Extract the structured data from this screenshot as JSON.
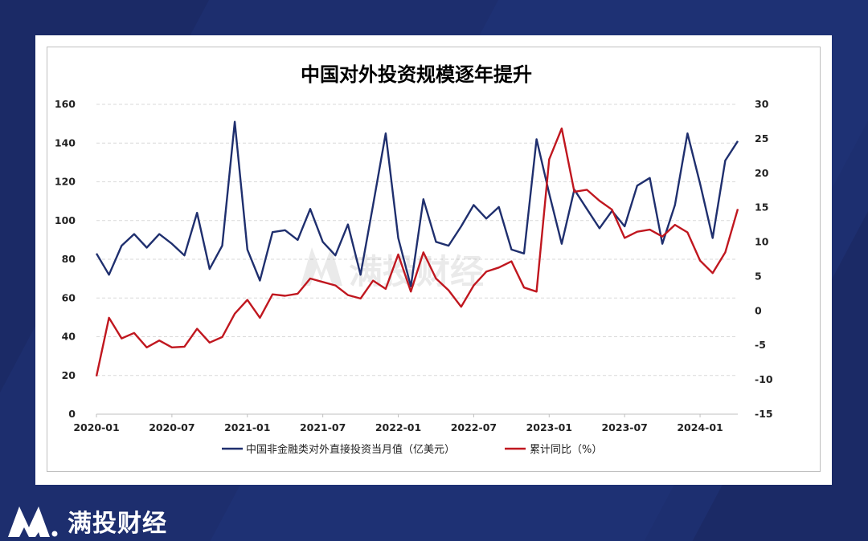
{
  "brand": {
    "name": "满投财经",
    "watermark": "满投财经"
  },
  "colors": {
    "background": "#1b2a66",
    "series_blue": "#1f2f6e",
    "series_red": "#c0171f"
  },
  "chart_data": {
    "type": "line",
    "title": "中国对外投资规模逐年提升",
    "x_tick_labels": [
      "2020-01",
      "2020-07",
      "2021-01",
      "2021-07",
      "2022-01",
      "2022-07",
      "2023-01",
      "2023-07",
      "2024-01"
    ],
    "x": [
      "2020-01",
      "2020-02",
      "2020-03",
      "2020-04",
      "2020-05",
      "2020-06",
      "2020-07",
      "2020-08",
      "2020-09",
      "2020-10",
      "2020-11",
      "2020-12",
      "2021-01",
      "2021-02",
      "2021-03",
      "2021-04",
      "2021-05",
      "2021-06",
      "2021-07",
      "2021-08",
      "2021-09",
      "2021-10",
      "2021-11",
      "2021-12",
      "2022-01",
      "2022-02",
      "2022-03",
      "2022-04",
      "2022-05",
      "2022-06",
      "2022-07",
      "2022-08",
      "2022-09",
      "2022-10",
      "2022-11",
      "2022-12",
      "2023-01",
      "2023-02",
      "2023-03",
      "2023-04",
      "2023-05",
      "2023-06",
      "2023-07",
      "2023-08",
      "2023-09",
      "2023-10",
      "2023-11",
      "2023-12",
      "2024-01",
      "2024-02",
      "2024-03",
      "2024-04"
    ],
    "y_left": {
      "ylim": [
        0,
        160
      ],
      "ticks": [
        "0",
        "20",
        "40",
        "60",
        "80",
        "100",
        "120",
        "140",
        "160"
      ]
    },
    "y_right": {
      "ylim": [
        -15,
        30
      ],
      "ticks": [
        "-15",
        "-10",
        "-5",
        "0",
        "5",
        "10",
        "15",
        "20",
        "25",
        "30"
      ]
    },
    "legend_position": "bottom",
    "series": [
      {
        "name": "中国非金融类对外直接投资当月值（亿美元）",
        "axis": "left",
        "color": "#1f2f6e",
        "values": [
          83,
          72,
          87,
          93,
          86,
          93,
          88,
          82,
          104,
          75,
          87,
          151,
          85,
          69,
          94,
          95,
          90,
          106,
          89,
          82,
          98,
          72,
          108,
          145,
          91,
          66,
          111,
          89,
          87,
          97,
          108,
          101,
          107,
          85,
          83,
          142,
          114,
          88,
          116,
          106,
          96,
          105,
          97,
          118,
          122,
          88,
          108,
          145,
          119,
          91,
          131,
          141
        ]
      },
      {
        "name": "累计同比（%）",
        "axis": "right",
        "color": "#c0171f",
        "values": [
          -9.5,
          -1.0,
          -4.0,
          -3.2,
          -5.3,
          -4.3,
          -5.3,
          -5.2,
          -2.6,
          -4.6,
          -3.8,
          -0.4,
          1.6,
          -1.0,
          2.4,
          2.2,
          2.5,
          4.7,
          4.2,
          3.7,
          2.3,
          1.8,
          4.4,
          3.2,
          8.2,
          2.8,
          8.5,
          4.7,
          3.0,
          0.6,
          3.7,
          5.7,
          6.3,
          7.2,
          3.4,
          2.8,
          22.0,
          26.5,
          17.3,
          17.6,
          16.0,
          14.7,
          10.6,
          11.5,
          11.8,
          10.8,
          12.5,
          11.4,
          7.3,
          5.5,
          8.5,
          14.8
        ]
      }
    ]
  }
}
